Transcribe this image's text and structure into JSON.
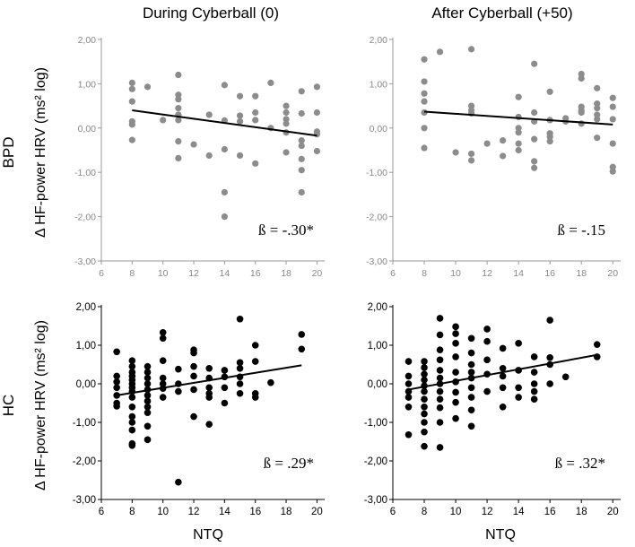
{
  "row_labels": [
    "BPD",
    "HC"
  ],
  "column_titles": [
    "During Cyberball (0)",
    "After Cyberball (+50)"
  ],
  "y_axis_label": "Δ HF-power HRV (ms² log)",
  "x_axis_label": "NTQ",
  "colors": {
    "bpd_points": "#8c8c8c",
    "hc_points": "#000000",
    "fit_line": "#000000",
    "top_axis": "#999999",
    "bottom_axis": "#000000"
  },
  "chart_data": [
    {
      "type": "scatter",
      "group": "BPD",
      "condition": "During Cyberball (0)",
      "x_ticks": [
        "6",
        "8",
        "10",
        "12",
        "14",
        "16",
        "18",
        "20"
      ],
      "y_ticks": [
        "-3,00",
        "-2,00",
        "-1,00",
        "0,00",
        "1,00",
        "2,00"
      ],
      "xlim": [
        6,
        20.5
      ],
      "ylim": [
        -3,
        2
      ],
      "annotation": "ß = -.30*",
      "fit_line": [
        [
          8,
          0.4
        ],
        [
          20,
          -0.17
        ]
      ],
      "points": [
        [
          8,
          1.02
        ],
        [
          8,
          0.88
        ],
        [
          8,
          0.6
        ],
        [
          8,
          0.15
        ],
        [
          8,
          0.08
        ],
        [
          8,
          -0.27
        ],
        [
          9,
          0.93
        ],
        [
          10,
          0.18
        ],
        [
          11,
          1.2
        ],
        [
          11,
          0.75
        ],
        [
          11,
          0.65
        ],
        [
          11,
          0.45
        ],
        [
          11,
          0.3
        ],
        [
          11,
          0.18
        ],
        [
          11,
          -0.3
        ],
        [
          11,
          -0.68
        ],
        [
          12,
          -0.37
        ],
        [
          13,
          0.3
        ],
        [
          13,
          -0.62
        ],
        [
          14,
          0.97
        ],
        [
          14,
          0.17
        ],
        [
          14,
          -0.48
        ],
        [
          14,
          -1.45
        ],
        [
          14,
          -2.0
        ],
        [
          15,
          0.72
        ],
        [
          15,
          0.28
        ],
        [
          15,
          0.15
        ],
        [
          15,
          -0.62
        ],
        [
          16,
          0.72
        ],
        [
          16,
          0.35
        ],
        [
          16,
          0.18
        ],
        [
          16,
          -0.8
        ],
        [
          17,
          1.02
        ],
        [
          17,
          0.0
        ],
        [
          18,
          0.5
        ],
        [
          18,
          0.35
        ],
        [
          18,
          0.2
        ],
        [
          18,
          0.1
        ],
        [
          18,
          -0.1
        ],
        [
          18,
          -0.55
        ],
        [
          19,
          0.83
        ],
        [
          19,
          0.33
        ],
        [
          19,
          -0.28
        ],
        [
          19,
          -0.4
        ],
        [
          19,
          -0.7
        ],
        [
          19,
          -0.95
        ],
        [
          19,
          -1.45
        ],
        [
          20,
          0.93
        ],
        [
          20,
          0.35
        ],
        [
          20,
          -0.08
        ],
        [
          20,
          -0.14
        ],
        [
          20,
          -0.52
        ]
      ]
    },
    {
      "type": "scatter",
      "group": "BPD",
      "condition": "After Cyberball (+50)",
      "x_ticks": [
        "6",
        "8",
        "10",
        "12",
        "14",
        "16",
        "18",
        "20"
      ],
      "y_ticks": [
        "-3,00",
        "-2,00",
        "-1,00",
        "0,00",
        "1,00",
        "2,00"
      ],
      "xlim": [
        6,
        20.5
      ],
      "ylim": [
        -3,
        2
      ],
      "annotation": "ß = -.15",
      "fit_line": [
        [
          8,
          0.37
        ],
        [
          20,
          0.08
        ]
      ],
      "points": [
        [
          8,
          1.55
        ],
        [
          8,
          1.05
        ],
        [
          8,
          0.78
        ],
        [
          8,
          0.6
        ],
        [
          8,
          0.35
        ],
        [
          8,
          0.0
        ],
        [
          8,
          -0.45
        ],
        [
          9,
          1.72
        ],
        [
          10,
          -0.55
        ],
        [
          11,
          1.78
        ],
        [
          11,
          0.5
        ],
        [
          11,
          0.4
        ],
        [
          11,
          0.33
        ],
        [
          11,
          -0.58
        ],
        [
          11,
          -0.73
        ],
        [
          12,
          -0.35
        ],
        [
          13,
          -0.28
        ],
        [
          13,
          -0.63
        ],
        [
          14,
          0.7
        ],
        [
          14,
          0.25
        ],
        [
          14,
          0.0
        ],
        [
          14,
          -0.1
        ],
        [
          14,
          -0.35
        ],
        [
          14,
          -0.5
        ],
        [
          15,
          1.45
        ],
        [
          15,
          0.35
        ],
        [
          15,
          0.15
        ],
        [
          15,
          -0.25
        ],
        [
          15,
          -0.75
        ],
        [
          15,
          -0.9
        ],
        [
          16,
          0.82
        ],
        [
          16,
          0.18
        ],
        [
          16,
          -0.12
        ],
        [
          16,
          -0.2
        ],
        [
          16,
          -0.3
        ],
        [
          17,
          0.22
        ],
        [
          17,
          0.15
        ],
        [
          18,
          1.22
        ],
        [
          18,
          1.12
        ],
        [
          18,
          0.48
        ],
        [
          18,
          0.4
        ],
        [
          18,
          0.35
        ],
        [
          18,
          0.1
        ],
        [
          19,
          0.9
        ],
        [
          19,
          0.55
        ],
        [
          19,
          0.45
        ],
        [
          19,
          0.3
        ],
        [
          19,
          0.2
        ],
        [
          19,
          -0.22
        ],
        [
          20,
          0.68
        ],
        [
          20,
          0.48
        ],
        [
          20,
          0.2
        ],
        [
          20,
          -0.35
        ],
        [
          20,
          -0.88
        ],
        [
          20,
          -0.98
        ]
      ]
    },
    {
      "type": "scatter",
      "group": "HC",
      "condition": "During Cyberball (0)",
      "x_ticks": [
        "6",
        "8",
        "10",
        "12",
        "14",
        "16",
        "18",
        "20"
      ],
      "y_ticks": [
        "-3,00",
        "-2,00",
        "-1,00",
        "0,00",
        "1,00",
        "2,00"
      ],
      "xlim": [
        6,
        20.5
      ],
      "ylim": [
        -3,
        2
      ],
      "annotation": "ß = .29*",
      "fit_line": [
        [
          7,
          -0.3
        ],
        [
          19,
          0.48
        ]
      ],
      "points": [
        [
          7,
          0.83
        ],
        [
          7,
          0.2
        ],
        [
          7,
          0.05
        ],
        [
          7,
          -0.1
        ],
        [
          7,
          -0.3
        ],
        [
          7,
          -0.5
        ],
        [
          7,
          -0.58
        ],
        [
          8,
          0.6
        ],
        [
          8,
          0.45
        ],
        [
          8,
          0.3
        ],
        [
          8,
          0.2
        ],
        [
          8,
          0.1
        ],
        [
          8,
          0.0
        ],
        [
          8,
          -0.1
        ],
        [
          8,
          -0.2
        ],
        [
          8,
          -0.35
        ],
        [
          8,
          -0.6
        ],
        [
          8,
          -0.85
        ],
        [
          8,
          -1.0
        ],
        [
          8,
          -1.2
        ],
        [
          8,
          -1.55
        ],
        [
          8,
          -1.6
        ],
        [
          9,
          0.45
        ],
        [
          9,
          0.3
        ],
        [
          9,
          0.15
        ],
        [
          9,
          0.0
        ],
        [
          9,
          -0.15
        ],
        [
          9,
          -0.3
        ],
        [
          9,
          -0.45
        ],
        [
          9,
          -0.6
        ],
        [
          9,
          -0.75
        ],
        [
          9,
          -1.1
        ],
        [
          9,
          -1.45
        ],
        [
          10,
          1.33
        ],
        [
          10,
          1.18
        ],
        [
          10,
          0.6
        ],
        [
          10,
          0.15
        ],
        [
          10,
          0.0
        ],
        [
          10,
          -0.12
        ],
        [
          10,
          -0.35
        ],
        [
          11,
          0.38
        ],
        [
          11,
          0.0
        ],
        [
          11,
          -0.2
        ],
        [
          11,
          -2.55
        ],
        [
          12,
          0.88
        ],
        [
          12,
          0.8
        ],
        [
          12,
          0.45
        ],
        [
          12,
          0.2
        ],
        [
          12,
          -0.15
        ],
        [
          12,
          -0.85
        ],
        [
          13,
          0.4
        ],
        [
          13,
          0.15
        ],
        [
          13,
          -0.1
        ],
        [
          13,
          -0.25
        ],
        [
          13,
          -0.35
        ],
        [
          13,
          -1.05
        ],
        [
          14,
          0.35
        ],
        [
          14,
          0.18
        ],
        [
          14,
          -0.1
        ],
        [
          14,
          -0.5
        ],
        [
          15,
          1.68
        ],
        [
          15,
          0.55
        ],
        [
          15,
          0.4
        ],
        [
          15,
          0.18
        ],
        [
          15,
          0.0
        ],
        [
          15,
          -0.25
        ],
        [
          16,
          1.0
        ],
        [
          16,
          0.58
        ],
        [
          16,
          -0.25
        ],
        [
          16,
          -0.35
        ],
        [
          17,
          0.03
        ],
        [
          19,
          1.28
        ],
        [
          19,
          0.9
        ]
      ]
    },
    {
      "type": "scatter",
      "group": "HC",
      "condition": "After Cyberball (+50)",
      "x_ticks": [
        "6",
        "8",
        "10",
        "12",
        "14",
        "16",
        "18",
        "20"
      ],
      "y_ticks": [
        "-3,00",
        "-2,00",
        "-1,00",
        "0,00",
        "1,00",
        "2,00"
      ],
      "xlim": [
        6,
        20.5
      ],
      "ylim": [
        -3,
        2
      ],
      "annotation": "ß = .32*",
      "fit_line": [
        [
          7,
          -0.15
        ],
        [
          19,
          0.75
        ]
      ],
      "points": [
        [
          7,
          0.58
        ],
        [
          7,
          0.2
        ],
        [
          7,
          0.0
        ],
        [
          7,
          -0.2
        ],
        [
          7,
          -0.35
        ],
        [
          7,
          -0.6
        ],
        [
          7,
          -1.32
        ],
        [
          8,
          0.58
        ],
        [
          8,
          0.42
        ],
        [
          8,
          0.25
        ],
        [
          8,
          0.1
        ],
        [
          8,
          -0.05
        ],
        [
          8,
          -0.2
        ],
        [
          8,
          -0.4
        ],
        [
          8,
          -0.6
        ],
        [
          8,
          -0.78
        ],
        [
          8,
          -1.0
        ],
        [
          8,
          -1.25
        ],
        [
          8,
          -1.62
        ],
        [
          9,
          1.7
        ],
        [
          9,
          1.27
        ],
        [
          9,
          0.88
        ],
        [
          9,
          0.62
        ],
        [
          9,
          0.35
        ],
        [
          9,
          0.15
        ],
        [
          9,
          0.0
        ],
        [
          9,
          -0.2
        ],
        [
          9,
          -0.4
        ],
        [
          9,
          -0.62
        ],
        [
          9,
          -1.0
        ],
        [
          9,
          -1.65
        ],
        [
          10,
          1.48
        ],
        [
          10,
          1.3
        ],
        [
          10,
          1.05
        ],
        [
          10,
          0.7
        ],
        [
          10,
          0.3
        ],
        [
          10,
          0.05
        ],
        [
          10,
          -0.22
        ],
        [
          10,
          -0.48
        ],
        [
          10,
          -0.9
        ],
        [
          11,
          1.18
        ],
        [
          11,
          0.8
        ],
        [
          11,
          0.5
        ],
        [
          11,
          0.3
        ],
        [
          11,
          0.15
        ],
        [
          11,
          -0.1
        ],
        [
          11,
          -0.35
        ],
        [
          11,
          -0.68
        ],
        [
          11,
          -1.1
        ],
        [
          12,
          1.42
        ],
        [
          12,
          1.1
        ],
        [
          12,
          0.62
        ],
        [
          12,
          0.25
        ],
        [
          12,
          -0.2
        ],
        [
          13,
          0.92
        ],
        [
          13,
          0.4
        ],
        [
          13,
          0.2
        ],
        [
          13,
          -0.1
        ],
        [
          13,
          -0.6
        ],
        [
          14,
          1.05
        ],
        [
          14,
          0.35
        ],
        [
          14,
          -0.1
        ],
        [
          14,
          -0.35
        ],
        [
          15,
          0.7
        ],
        [
          15,
          0.3
        ],
        [
          15,
          0.0
        ],
        [
          15,
          -0.2
        ],
        [
          15,
          -0.4
        ],
        [
          16,
          1.65
        ],
        [
          16,
          0.68
        ],
        [
          16,
          0.5
        ],
        [
          16,
          0.0
        ],
        [
          17,
          0.18
        ],
        [
          19,
          1.02
        ],
        [
          19,
          0.7
        ]
      ]
    }
  ]
}
